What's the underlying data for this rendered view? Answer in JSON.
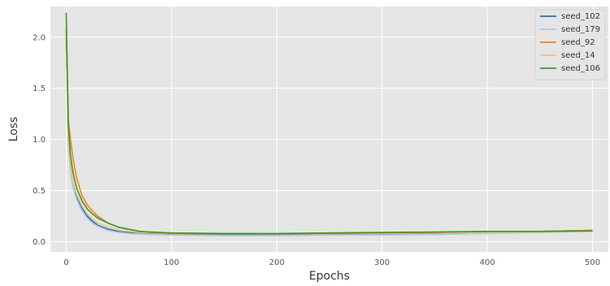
{
  "chart_data": {
    "type": "line",
    "title": "",
    "xlabel": "Epochs",
    "ylabel": "Loss",
    "xlim": [
      -15,
      515
    ],
    "ylim": [
      -0.1,
      2.3
    ],
    "xticks": [
      "0",
      "100",
      "200",
      "300",
      "400",
      "500"
    ],
    "xtick_values": [
      0,
      100,
      200,
      300,
      400,
      500
    ],
    "yticks": [
      "0.0",
      "0.5",
      "1.0",
      "1.5",
      "2.0"
    ],
    "ytick_values": [
      0.0,
      0.5,
      1.0,
      1.5,
      2.0
    ],
    "grid": true,
    "background": "#e5e5e5",
    "legend_position": "top-right",
    "series": [
      {
        "name": "seed_102",
        "color": "#1f77b4",
        "x": [
          0,
          2,
          4,
          6,
          8,
          10,
          15,
          20,
          25,
          30,
          40,
          50,
          60,
          70,
          80,
          100,
          150,
          200,
          250,
          300,
          350,
          400,
          450,
          500
        ],
        "y": [
          2.0,
          1.0,
          0.72,
          0.58,
          0.5,
          0.44,
          0.33,
          0.25,
          0.2,
          0.16,
          0.12,
          0.1,
          0.09,
          0.08,
          0.075,
          0.07,
          0.065,
          0.065,
          0.07,
          0.07,
          0.08,
          0.09,
          0.1,
          0.11
        ]
      },
      {
        "name": "seed_179",
        "color": "#aec7e8",
        "x": [
          0,
          2,
          4,
          6,
          8,
          10,
          15,
          20,
          25,
          30,
          40,
          50,
          60,
          70,
          80,
          100,
          150,
          200,
          250,
          300,
          350,
          400,
          450,
          500
        ],
        "y": [
          2.05,
          0.95,
          0.68,
          0.55,
          0.47,
          0.41,
          0.3,
          0.23,
          0.18,
          0.15,
          0.11,
          0.09,
          0.08,
          0.075,
          0.07,
          0.065,
          0.06,
          0.06,
          0.065,
          0.065,
          0.07,
          0.08,
          0.09,
          0.1
        ]
      },
      {
        "name": "seed_92",
        "color": "#ff7f0e",
        "x": [
          0,
          2,
          4,
          6,
          8,
          10,
          15,
          20,
          25,
          30,
          40,
          50,
          60,
          70,
          80,
          100,
          150,
          200,
          250,
          300,
          350,
          400,
          450,
          500
        ],
        "y": [
          2.1,
          1.2,
          1.0,
          0.85,
          0.72,
          0.62,
          0.45,
          0.36,
          0.3,
          0.25,
          0.18,
          0.14,
          0.12,
          0.1,
          0.09,
          0.08,
          0.075,
          0.075,
          0.08,
          0.085,
          0.09,
          0.1,
          0.1,
          0.11
        ]
      },
      {
        "name": "seed_14",
        "color": "#ffbb78",
        "x": [
          0,
          2,
          4,
          6,
          8,
          10,
          15,
          20,
          25,
          30,
          40,
          50,
          60,
          70,
          80,
          100,
          150,
          200,
          250,
          300,
          350,
          400,
          450,
          500
        ],
        "y": [
          2.0,
          1.05,
          0.75,
          0.6,
          0.52,
          0.46,
          0.35,
          0.27,
          0.22,
          0.18,
          0.14,
          0.11,
          0.1,
          0.09,
          0.085,
          0.08,
          0.08,
          0.075,
          0.08,
          0.08,
          0.085,
          0.09,
          0.095,
          0.1
        ]
      },
      {
        "name": "seed_106",
        "color": "#2ca02c",
        "x": [
          0,
          2,
          4,
          6,
          8,
          10,
          15,
          20,
          25,
          30,
          40,
          50,
          60,
          70,
          80,
          100,
          150,
          200,
          250,
          300,
          350,
          400,
          450,
          500
        ],
        "y": [
          2.24,
          1.15,
          0.85,
          0.7,
          0.6,
          0.52,
          0.4,
          0.32,
          0.27,
          0.23,
          0.18,
          0.14,
          0.12,
          0.1,
          0.095,
          0.085,
          0.08,
          0.08,
          0.085,
          0.09,
          0.095,
          0.1,
          0.1,
          0.105
        ]
      }
    ]
  }
}
